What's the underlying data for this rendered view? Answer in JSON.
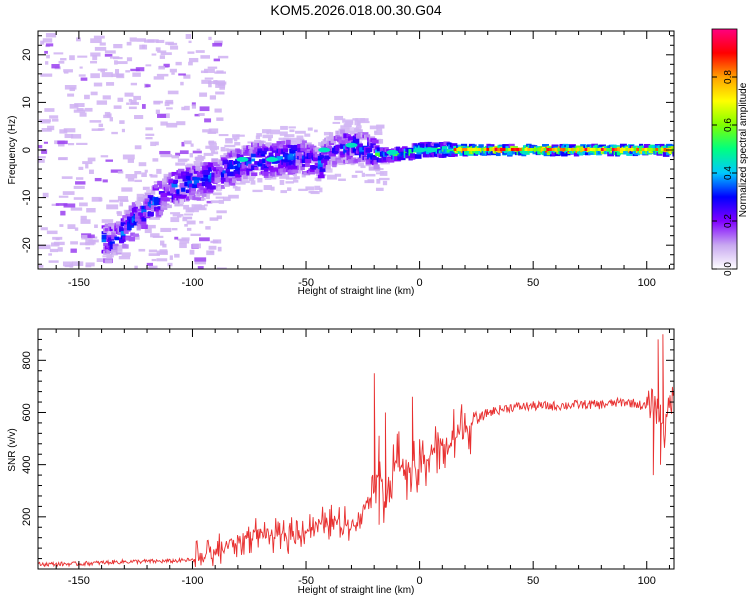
{
  "title": "KOM5.2026.018.00.30.G04",
  "chart_data": [
    {
      "type": "heatmap",
      "xlabel": "Height of straight line (km)",
      "ylabel": "Frequency (Hz)",
      "xlim": [
        -168,
        112
      ],
      "ylim": [
        -25,
        25
      ],
      "xticks": [
        -150,
        -100,
        -50,
        0,
        50,
        100
      ],
      "yticks": [
        -20,
        -10,
        0,
        10,
        20
      ],
      "colorbar": {
        "label": "Normalized spectral amplitude",
        "range": [
          0,
          1
        ],
        "ticks": [
          "0.0",
          "0.2",
          "0.4",
          "0.6",
          "0.8"
        ],
        "tick_values": [
          0.0,
          0.2,
          0.4,
          0.6,
          0.8
        ],
        "colors": [
          "#ffffff",
          "#c8a8f0",
          "#8000ff",
          "#0000ff",
          "#00c8ff",
          "#00ff80",
          "#80ff00",
          "#ffff00",
          "#ffa000",
          "#ff0000",
          "#ff0080"
        ]
      },
      "ridge": [
        {
          "x": -135,
          "y": -19
        },
        {
          "x": -125,
          "y": -14
        },
        {
          "x": -110,
          "y": -8
        },
        {
          "x": -95,
          "y": -6
        },
        {
          "x": -85,
          "y": -4
        },
        {
          "x": -75,
          "y": -2
        },
        {
          "x": -65,
          "y": -2
        },
        {
          "x": -55,
          "y": -1
        },
        {
          "x": -45,
          "y": -3
        },
        {
          "x": -40,
          "y": 0
        },
        {
          "x": -30,
          "y": 1
        },
        {
          "x": -20,
          "y": -1
        },
        {
          "x": -10,
          "y": -1
        },
        {
          "x": 0,
          "y": 0
        },
        {
          "x": 10,
          "y": 0
        },
        {
          "x": 25,
          "y": 0
        },
        {
          "x": 50,
          "y": 0
        },
        {
          "x": 75,
          "y": 0
        },
        {
          "x": 100,
          "y": 0
        },
        {
          "x": 112,
          "y": 0
        }
      ]
    },
    {
      "type": "line",
      "xlabel": "Height of straight line (km)",
      "ylabel": "SNR (v/v)",
      "xlim": [
        -168,
        112
      ],
      "ylim": [
        0,
        920
      ],
      "xticks": [
        -150,
        -100,
        -50,
        0,
        50,
        100
      ],
      "yticks": [
        200,
        400,
        600,
        800
      ],
      "series": [
        {
          "color": "#e83030",
          "x": [
            -168,
            -150,
            -130,
            -110,
            -100,
            -90,
            -80,
            -70,
            -60,
            -50,
            -40,
            -30,
            -25,
            -20,
            -18,
            -15,
            -10,
            -5,
            0,
            5,
            10,
            15,
            20,
            25,
            30,
            40,
            50,
            60,
            70,
            80,
            90,
            95,
            100,
            103,
            105,
            107,
            108,
            110,
            112
          ],
          "y": [
            18,
            20,
            28,
            30,
            35,
            60,
            110,
            140,
            120,
            150,
            180,
            170,
            220,
            330,
            400,
            260,
            420,
            380,
            380,
            450,
            470,
            500,
            540,
            570,
            600,
            620,
            625,
            625,
            630,
            630,
            640,
            635,
            620,
            640,
            600,
            580,
            500,
            650,
            650
          ]
        }
      ],
      "spikes": [
        {
          "x": -20,
          "y": 750
        },
        {
          "x": -18,
          "y": 170
        },
        {
          "x": -15,
          "y": 600
        },
        {
          "x": -3,
          "y": 660
        },
        {
          "x": 103,
          "y": 360
        },
        {
          "x": 105,
          "y": 880
        },
        {
          "x": 106,
          "y": 400
        },
        {
          "x": 107,
          "y": 900
        }
      ]
    }
  ]
}
